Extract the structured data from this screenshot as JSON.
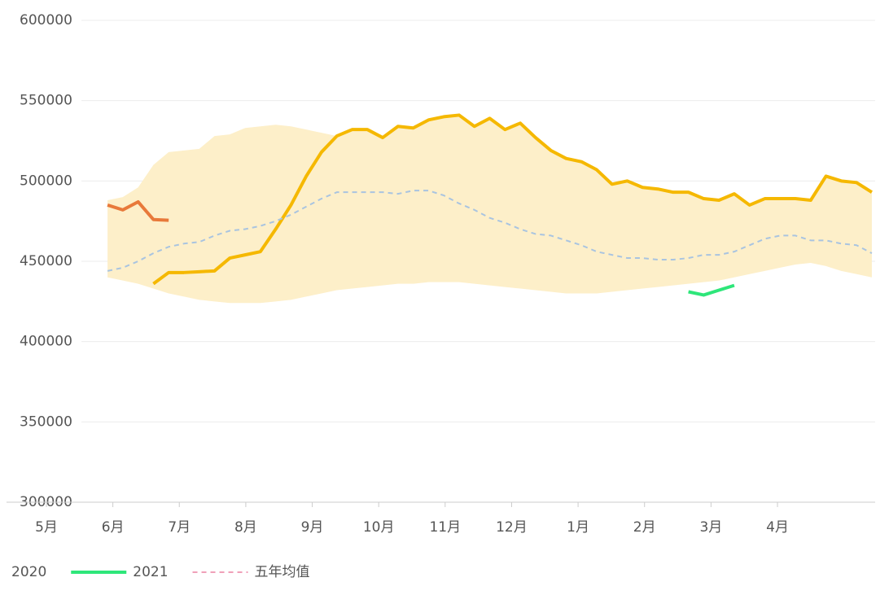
{
  "chart_data": {
    "type": "line",
    "ylim": [
      300000,
      600000
    ],
    "yticks": [
      300000,
      350000,
      400000,
      450000,
      500000,
      550000,
      600000
    ],
    "xlim": [
      4.4,
      17.47
    ],
    "xticks": [
      {
        "value": 5,
        "label": "5月"
      },
      {
        "value": 6,
        "label": "6月"
      },
      {
        "value": 7,
        "label": "7月"
      },
      {
        "value": 8,
        "label": "8月"
      },
      {
        "value": 9,
        "label": "9月"
      },
      {
        "value": 10,
        "label": "10月"
      },
      {
        "value": 11,
        "label": "11月"
      },
      {
        "value": 12,
        "label": "12月"
      },
      {
        "value": 13,
        "label": "1月"
      },
      {
        "value": 14,
        "label": "2月"
      },
      {
        "value": 15,
        "label": "3月"
      },
      {
        "value": 16,
        "label": "4月"
      }
    ],
    "x": [
      5.92,
      6.15,
      6.38,
      6.61,
      6.84,
      7.07,
      7.3,
      7.53,
      7.76,
      7.99,
      8.22,
      8.45,
      8.68,
      8.91,
      9.14,
      9.37,
      9.6,
      9.83,
      10.06,
      10.29,
      10.52,
      10.75,
      10.98,
      11.21,
      11.44,
      11.67,
      11.9,
      12.13,
      12.36,
      12.59,
      12.82,
      13.05,
      13.28,
      13.51,
      13.74,
      13.97,
      14.2,
      14.43,
      14.66,
      14.89,
      15.12,
      15.35,
      15.58,
      15.81,
      16.04,
      16.27,
      16.5,
      16.73,
      16.96,
      17.19,
      17.42
    ],
    "band": {
      "color": "#fdefc9",
      "upper": [
        488000,
        490000,
        496000,
        510000,
        518000,
        519000,
        520000,
        528000,
        529000,
        533000,
        534000,
        535000,
        534000,
        532000,
        530000,
        528000,
        532000,
        532000,
        527000,
        534000,
        533000,
        538000,
        540000,
        541000,
        534000,
        539000,
        532000,
        536000,
        527000,
        519000,
        514000,
        512000,
        507000,
        498000,
        500000,
        496000,
        495000,
        493000,
        493000,
        489000,
        488000,
        492000,
        485000,
        489000,
        489000,
        489000,
        488000,
        503000,
        500000,
        499000,
        493000
      ],
      "lower": [
        440000,
        438000,
        436000,
        433000,
        430000,
        428000,
        426000,
        425000,
        424000,
        424000,
        424000,
        425000,
        426000,
        428000,
        430000,
        432000,
        433000,
        434000,
        435000,
        436000,
        436000,
        437000,
        437000,
        437000,
        436000,
        435000,
        434000,
        433000,
        432000,
        431000,
        430000,
        430000,
        430000,
        431000,
        432000,
        433000,
        434000,
        435000,
        436000,
        437000,
        438000,
        440000,
        442000,
        444000,
        446000,
        448000,
        449000,
        447000,
        444000,
        442000,
        440000
      ]
    },
    "series": [
      {
        "name": "2020",
        "color": "#f5b800",
        "width": 4,
        "dash": false,
        "legend": false,
        "values": [
          null,
          null,
          null,
          436000,
          443000,
          443000,
          443500,
          444000,
          452000,
          454000,
          456000,
          470000,
          485000,
          503000,
          518000,
          528000,
          532000,
          532000,
          527000,
          534000,
          533000,
          538000,
          540000,
          541000,
          534000,
          539000,
          532000,
          536000,
          527000,
          519000,
          514000,
          512000,
          507000,
          498000,
          500000,
          496000,
          495000,
          493000,
          493000,
          489000,
          488000,
          492000,
          485000,
          489000,
          489000,
          489000,
          488000,
          503000,
          500000,
          499000,
          493000
        ]
      },
      {
        "name": "2021",
        "color": "#2ee67a",
        "width": 4,
        "dash": false,
        "legend": true,
        "values": [
          null,
          null,
          null,
          null,
          null,
          null,
          null,
          null,
          null,
          null,
          null,
          null,
          null,
          null,
          null,
          null,
          null,
          null,
          null,
          null,
          null,
          null,
          null,
          null,
          null,
          null,
          null,
          null,
          null,
          null,
          null,
          null,
          null,
          null,
          null,
          null,
          null,
          null,
          431000,
          429000,
          432000,
          435000,
          null,
          null,
          null,
          null,
          null,
          null,
          null,
          null,
          null
        ]
      },
      {
        "name": "五年均值",
        "color": "#a9c4e0",
        "legendColor": "#f0a0b8",
        "width": 2,
        "dash": true,
        "legend": true,
        "values": [
          444000,
          446000,
          450000,
          455000,
          459000,
          461000,
          462000,
          466000,
          469000,
          470000,
          472000,
          475000,
          479000,
          484000,
          489000,
          493000,
          493000,
          493000,
          493000,
          492000,
          494000,
          494000,
          491000,
          486000,
          482000,
          477000,
          474000,
          470000,
          467000,
          466000,
          463000,
          460000,
          456000,
          454000,
          452000,
          452000,
          451000,
          451000,
          452000,
          454000,
          454000,
          456000,
          460000,
          464000,
          466000,
          466000,
          463000,
          463000,
          461000,
          460000,
          455000
        ]
      },
      {
        "color": "#e8793a",
        "width": 4,
        "dash": false,
        "legend": false,
        "values": [
          485000,
          482000,
          487000,
          476000,
          475500,
          null,
          null,
          null,
          null,
          null,
          null,
          null,
          null,
          null,
          null,
          null,
          null,
          null,
          null,
          null,
          null,
          null,
          null,
          null,
          null,
          null,
          null,
          null,
          null,
          null,
          null,
          null,
          null,
          null,
          null,
          null,
          null,
          null,
          null,
          null,
          null,
          null,
          null,
          null,
          null,
          null,
          null,
          null,
          null,
          null,
          null
        ]
      }
    ]
  }
}
